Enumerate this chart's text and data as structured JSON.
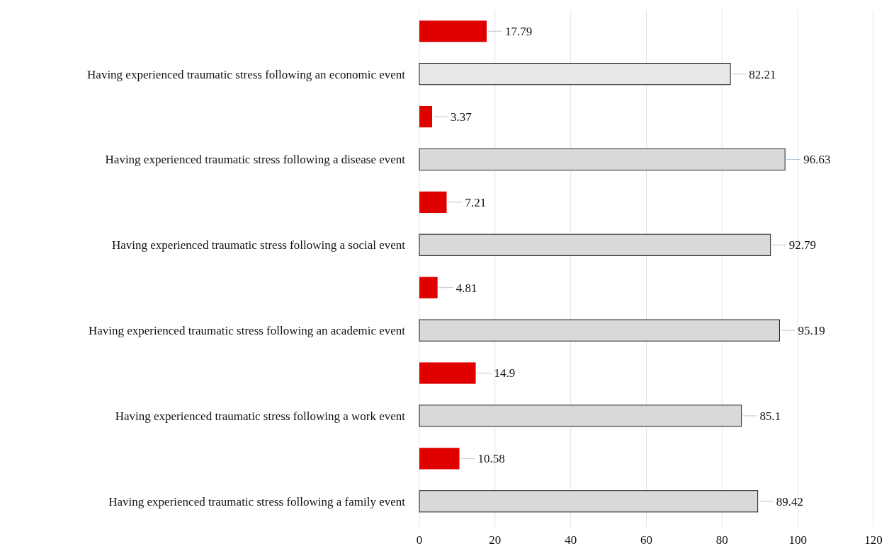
{
  "chart_data": {
    "type": "bar",
    "orientation": "horizontal",
    "categories": [
      "Having experienced traumatic stress following an economic  event",
      "Having experienced traumatic stress following a disease event",
      "Having experienced traumatic stress following a social event",
      "Having experienced traumatic stress following an academic event",
      "Having experienced traumatic stress following a work event",
      "Having experienced traumatic stress following a family event"
    ],
    "series": [
      {
        "color": "#e00000",
        "values": [
          17.79,
          3.37,
          7.21,
          4.81,
          14.9,
          10.58
        ]
      },
      {
        "colors": [
          "#e8e8e8",
          "#d9d9d9",
          "#d9d9d9",
          "#d9d9d9",
          "#d9d9d9",
          "#d9d9d9"
        ],
        "values": [
          82.21,
          96.63,
          92.79,
          95.19,
          85.1,
          89.42
        ]
      }
    ],
    "xlim": [
      0,
      120
    ],
    "xticks": [
      0,
      20,
      40,
      60,
      80,
      100,
      120
    ],
    "grid": "x",
    "data_labels": true
  }
}
